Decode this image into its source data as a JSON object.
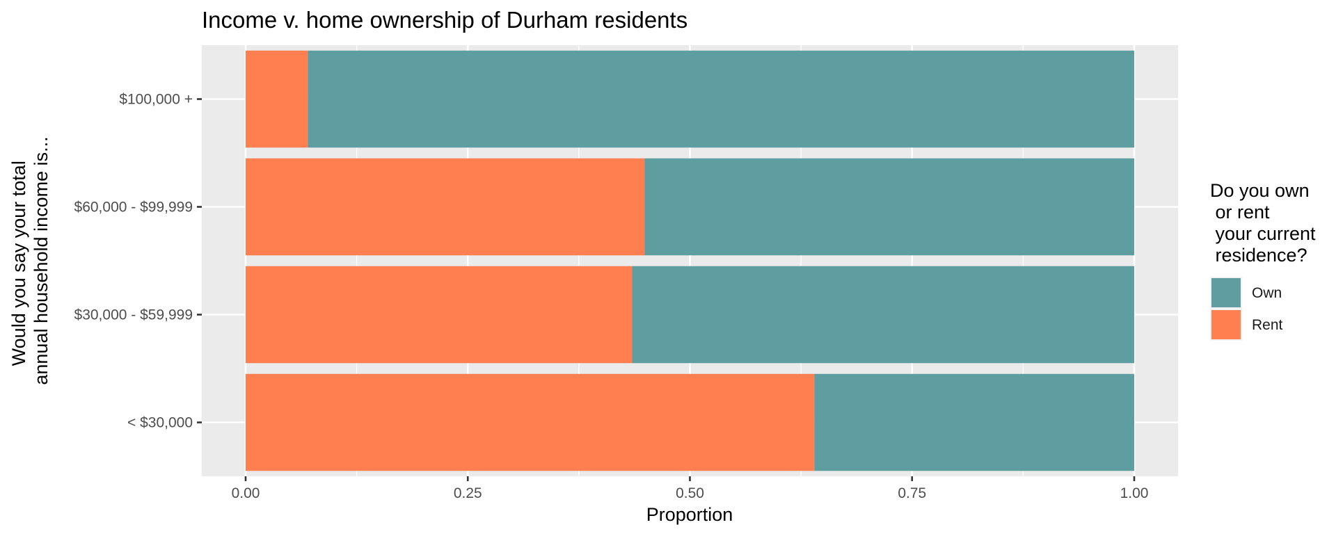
{
  "chart_data": {
    "type": "bar",
    "orientation": "horizontal",
    "stacked": "fill",
    "title": "Income v. home ownership of Durham residents",
    "xlabel": "Proportion",
    "ylabel_lines": [
      "Would you say your total",
      "annual household income is..."
    ],
    "xlim": [
      0,
      1
    ],
    "x_ticks": [
      "0.00",
      "0.25",
      "0.50",
      "0.75",
      "1.00"
    ],
    "categories": [
      "< $30,000",
      "$30,000 - $59,999",
      "$60,000 - $99,999",
      "$100,000 +"
    ],
    "series": [
      {
        "name": "Rent",
        "color": "#FF7F50",
        "values": [
          0.64,
          0.435,
          0.449,
          0.07
        ]
      },
      {
        "name": "Own",
        "color": "#5F9EA0",
        "values": [
          0.36,
          0.565,
          0.551,
          0.93
        ]
      }
    ],
    "legend": {
      "title_lines": [
        "Do you own",
        " or rent",
        " your current",
        " residence?"
      ],
      "placement": "right",
      "entries": [
        {
          "label": "Own",
          "color": "#5F9EA0"
        },
        {
          "label": "Rent",
          "color": "#FF7F50"
        }
      ]
    },
    "panel_background": "#EBEBEB",
    "grid": true,
    "grid_color": "#FFFFFF"
  }
}
